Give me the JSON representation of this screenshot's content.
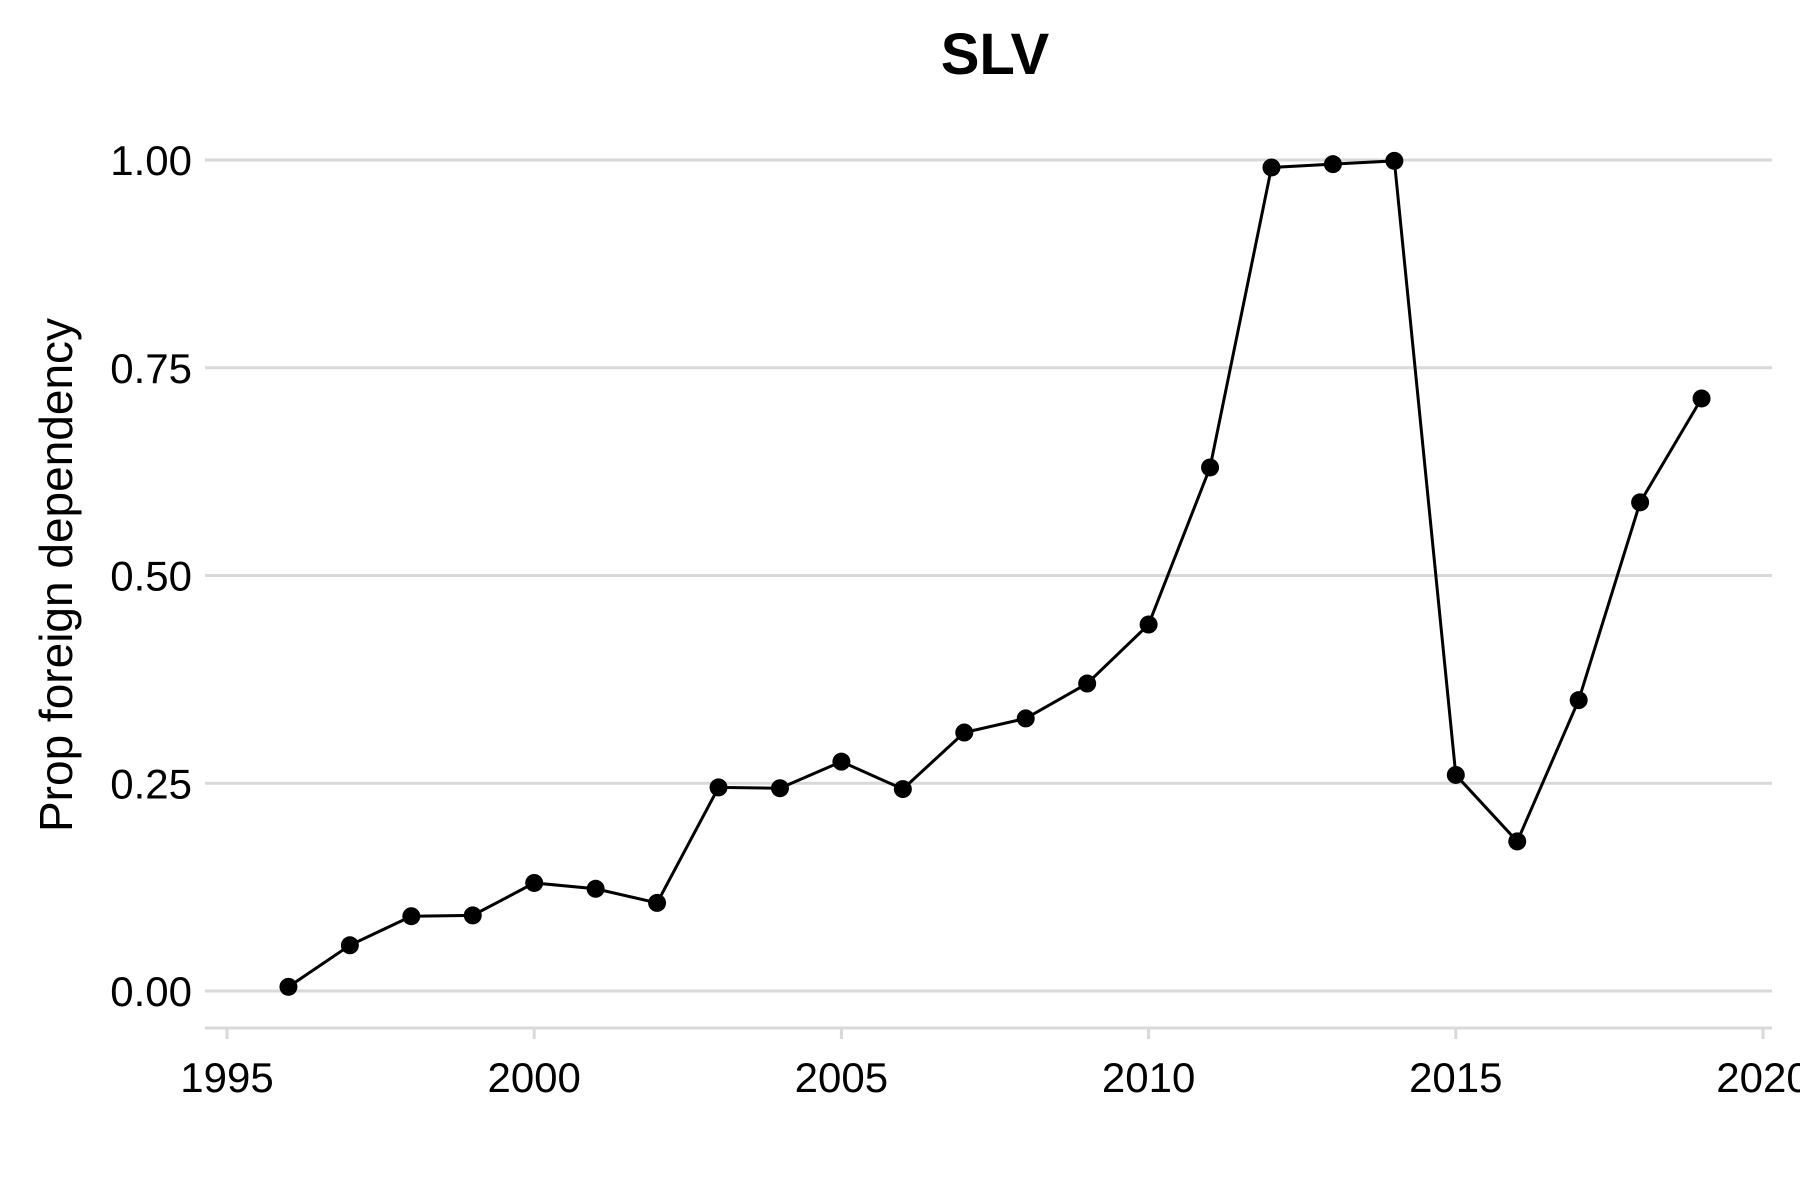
{
  "chart_data": {
    "type": "line",
    "title": "SLV",
    "xlabel": "",
    "ylabel": "Prop foreign dependency",
    "xlim": [
      1995,
      2020
    ],
    "ylim": [
      0,
      1
    ],
    "x_ticks": [
      1995,
      2000,
      2005,
      2010,
      2015,
      2020
    ],
    "y_ticks": [
      0,
      0.25,
      0.5,
      0.75,
      1
    ],
    "y_tick_labels": [
      "0.00",
      "0.25",
      "0.50",
      "0.75",
      "1.00"
    ],
    "x_tick_labels": [
      "1995",
      "2000",
      "2005",
      "2010",
      "2015",
      "2020"
    ],
    "grid": "horizontal",
    "legend": "none",
    "colors": {
      "series": "#000000",
      "grid": "#d9d9d9"
    },
    "series": [
      {
        "x": [
          1996,
          1997,
          1998,
          1999,
          2000,
          2001,
          2002,
          2003,
          2004,
          2005,
          2006,
          2007,
          2008,
          2009,
          2010,
          2011,
          2012,
          2013,
          2014,
          2015,
          2016,
          2017,
          2018,
          2019
        ],
        "values": [
          0.005,
          0.055,
          0.09,
          0.091,
          0.13,
          0.123,
          0.106,
          0.245,
          0.244,
          0.276,
          0.243,
          0.311,
          0.328,
          0.37,
          0.441,
          0.63,
          0.991,
          0.995,
          0.999,
          0.26,
          0.18,
          0.35,
          0.588,
          0.713
        ]
      }
    ]
  }
}
